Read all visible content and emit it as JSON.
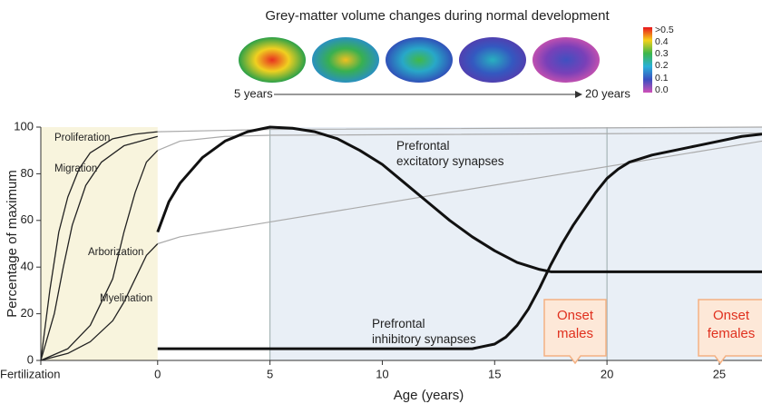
{
  "chart_data": {
    "type": "line",
    "title": "Grey-matter volume changes during normal development",
    "start_label": "5 years",
    "end_label": "20 years",
    "colorbar_labels": [
      ">0.5",
      "0.4",
      "0.3",
      "0.2",
      "0.1",
      "0.0"
    ],
    "x_label": "Age (years)",
    "y_label": "Percentage of maximum",
    "xlim": [
      -5.2,
      26.9
    ],
    "ylim": [
      0,
      100
    ],
    "xticks": [
      {
        "value": -5.2,
        "label": "Fertilization"
      },
      0,
      5,
      10,
      15,
      20,
      25
    ],
    "yticks": [
      0,
      20,
      40,
      60,
      80,
      100
    ],
    "shaded_regions": [
      {
        "from": -5.2,
        "to": 0,
        "color": "#f8f4dd"
      },
      {
        "from": 5,
        "to": 26.9,
        "color": "#e9eff6"
      }
    ],
    "vlines": [
      5,
      20
    ],
    "series": [
      {
        "name": "Proliferation",
        "color": "#222",
        "line_width": 1.3,
        "x": [
          -5.2,
          -4.8,
          -4.4,
          -4,
          -3.5,
          -3,
          -2,
          -1,
          0
        ],
        "values": [
          0,
          30,
          55,
          70,
          82,
          89,
          95,
          97,
          98
        ]
      },
      {
        "name": "Migration",
        "color": "#222",
        "line_width": 1.3,
        "x": [
          -5.2,
          -4.6,
          -4.2,
          -3.8,
          -3.2,
          -2.5,
          -1.5,
          0
        ],
        "values": [
          0,
          20,
          40,
          58,
          75,
          85,
          92,
          96
        ]
      },
      {
        "name": "Arborization",
        "color": "#222",
        "line_width": 1.3,
        "x": [
          -5.2,
          -4,
          -3,
          -2,
          -1.5,
          -1,
          -0.5,
          0
        ],
        "values": [
          0,
          5,
          15,
          35,
          55,
          72,
          85,
          90
        ]
      },
      {
        "name": "Myelination",
        "color": "#222",
        "line_width": 1.3,
        "x": [
          -5.2,
          -4,
          -3,
          -2,
          -1.5,
          -1,
          -0.5,
          0
        ],
        "values": [
          0,
          3,
          8,
          17,
          25,
          35,
          45,
          50
        ]
      },
      {
        "color": "#aaa",
        "line_width": 1.2,
        "x": [
          0,
          5,
          26.9
        ],
        "values": [
          98,
          99,
          100
        ]
      },
      {
        "color": "#aaa",
        "line_width": 1.2,
        "x": [
          0,
          1,
          3,
          5,
          26.9
        ],
        "values": [
          90,
          94,
          96,
          96.5,
          97.5
        ]
      },
      {
        "color": "#aaa",
        "line_width": 1.2,
        "x": [
          0,
          1,
          26.9
        ],
        "values": [
          50,
          53,
          94
        ]
      },
      {
        "name": "Prefrontal\nexcitatory synapses",
        "color": "#111",
        "line_width": 3,
        "x": [
          0,
          0.5,
          1,
          2,
          3,
          4,
          5,
          6,
          7,
          8,
          9,
          10,
          11,
          12,
          13,
          14,
          15,
          16,
          17,
          17.5,
          26.9
        ],
        "values": [
          55,
          68,
          76,
          87,
          94,
          98,
          100,
          99.5,
          98,
          95,
          90,
          84,
          76,
          68,
          60,
          53,
          47,
          42,
          39,
          38,
          38
        ]
      },
      {
        "name": "Prefrontal\ninhibitory synapses",
        "color": "#111",
        "line_width": 3,
        "x": [
          0,
          14,
          14.5,
          15,
          15.5,
          16,
          16.5,
          17,
          17.5,
          18,
          18.5,
          19,
          19.5,
          20,
          20.5,
          21,
          22,
          23,
          24,
          25,
          26,
          26.9
        ],
        "values": [
          5,
          5,
          6,
          7,
          10,
          15,
          22,
          31,
          41,
          50,
          58,
          65,
          72,
          78,
          82,
          85,
          88,
          90,
          92,
          94,
          96,
          97
        ]
      }
    ],
    "annotations": [
      "Onset\nmales",
      "Onset\nfemales"
    ]
  }
}
